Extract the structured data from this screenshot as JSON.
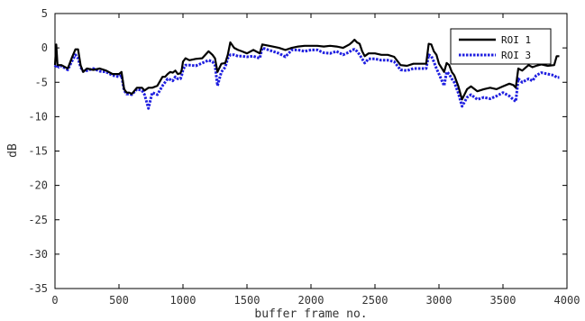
{
  "chart_data": {
    "type": "line",
    "title": "",
    "xlabel": "buffer frame no.",
    "ylabel": "dB",
    "xlim": [
      0,
      4000
    ],
    "ylim": [
      -35,
      5
    ],
    "xticks": [
      "0",
      "500",
      "1000",
      "1500",
      "2000",
      "2500",
      "3000",
      "3500",
      "4000"
    ],
    "yticks": [
      "5",
      "0",
      "-5",
      "-10",
      "-15",
      "-20",
      "-25",
      "-30",
      "-35"
    ],
    "grid": false,
    "legend_position": "top-right",
    "series": [
      {
        "name": "ROI 1",
        "color": "#000000",
        "style": "solid",
        "x": [
          0,
          10,
          20,
          50,
          100,
          130,
          160,
          180,
          200,
          220,
          250,
          300,
          350,
          400,
          450,
          500,
          520,
          540,
          560,
          580,
          600,
          640,
          680,
          700,
          730,
          760,
          800,
          840,
          860,
          880,
          900,
          920,
          940,
          960,
          980,
          990,
          1000,
          1020,
          1050,
          1100,
          1150,
          1200,
          1230,
          1250,
          1270,
          1300,
          1330,
          1350,
          1370,
          1400,
          1430,
          1460,
          1500,
          1550,
          1600,
          1620,
          1700,
          1750,
          1800,
          1850,
          1900,
          1950,
          2000,
          2050,
          2100,
          2150,
          2200,
          2250,
          2300,
          2320,
          2340,
          2360,
          2380,
          2400,
          2420,
          2450,
          2500,
          2550,
          2600,
          2650,
          2700,
          2750,
          2800,
          2850,
          2900,
          2920,
          2940,
          2960,
          2980,
          3000,
          3040,
          3060,
          3080,
          3100,
          3120,
          3150,
          3180,
          3220,
          3250,
          3300,
          3350,
          3400,
          3450,
          3500,
          3550,
          3580,
          3600,
          3620,
          3650,
          3700,
          3730,
          3760,
          3800,
          3850,
          3900,
          3920,
          3940
        ],
        "values": [
          -2.5,
          0.5,
          -2.5,
          -2.5,
          -3,
          -1.5,
          -0.2,
          -0.2,
          -2.5,
          -3.5,
          -3,
          -3.2,
          -3,
          -3.3,
          -3.8,
          -3.8,
          -3.5,
          -6,
          -6.5,
          -6.5,
          -6.7,
          -5.8,
          -5.8,
          -6.2,
          -5.8,
          -5.8,
          -5.5,
          -4.2,
          -4.2,
          -3.8,
          -3.5,
          -3.6,
          -3.3,
          -3.8,
          -3.7,
          -3.2,
          -2,
          -1.5,
          -1.8,
          -1.6,
          -1.5,
          -0.5,
          -1,
          -1.5,
          -3.5,
          -2.3,
          -2.2,
          -1,
          0.8,
          0,
          -0.3,
          -0.5,
          -0.8,
          -0.3,
          -0.8,
          0.5,
          0.2,
          0,
          -0.3,
          0,
          0.2,
          0.3,
          0.3,
          0.3,
          0.2,
          0.3,
          0.2,
          0,
          0.5,
          0.8,
          1.2,
          0.8,
          0.6,
          -0.5,
          -1.2,
          -0.8,
          -0.8,
          -1,
          -1,
          -1.3,
          -2.5,
          -2.6,
          -2.3,
          -2.3,
          -2.3,
          0.6,
          0.5,
          -0.5,
          -1,
          -2.3,
          -3.5,
          -2.2,
          -2.5,
          -3.5,
          -4,
          -5.5,
          -7.5,
          -6,
          -5.6,
          -6.3,
          -6,
          -5.8,
          -6,
          -5.6,
          -5.2,
          -5.4,
          -5.8,
          -3,
          -3.3,
          -2.5,
          -2.8,
          -2.6,
          -2.4,
          -2.6,
          -2.5,
          -1.2,
          -1.2
        ]
      },
      {
        "name": "ROI 3",
        "color": "#1f1fe0",
        "style": "dotted",
        "x": [
          0,
          10,
          30,
          50,
          100,
          130,
          160,
          180,
          200,
          220,
          250,
          300,
          350,
          400,
          450,
          500,
          520,
          540,
          560,
          580,
          600,
          640,
          680,
          700,
          730,
          760,
          800,
          840,
          860,
          880,
          900,
          920,
          940,
          960,
          980,
          990,
          1000,
          1020,
          1050,
          1100,
          1150,
          1200,
          1230,
          1250,
          1270,
          1300,
          1330,
          1350,
          1370,
          1400,
          1430,
          1460,
          1500,
          1550,
          1600,
          1620,
          1700,
          1750,
          1800,
          1850,
          1900,
          1950,
          2000,
          2050,
          2100,
          2150,
          2200,
          2250,
          2300,
          2320,
          2340,
          2360,
          2380,
          2400,
          2420,
          2450,
          2500,
          2550,
          2600,
          2650,
          2700,
          2750,
          2800,
          2850,
          2900,
          2920,
          2940,
          2960,
          2980,
          3000,
          3040,
          3060,
          3080,
          3100,
          3120,
          3150,
          3180,
          3220,
          3250,
          3300,
          3350,
          3400,
          3450,
          3500,
          3550,
          3580,
          3600,
          3620,
          3650,
          3700,
          3730,
          3760,
          3800,
          3850,
          3900,
          3920,
          3940
        ],
        "values": [
          -2.8,
          -2.5,
          -2.8,
          -2.6,
          -3.2,
          -2,
          -1,
          -1.5,
          -2.8,
          -3.4,
          -3.3,
          -3,
          -3.4,
          -3.5,
          -4,
          -4.2,
          -4,
          -6.2,
          -6.7,
          -6.7,
          -6.8,
          -6,
          -6.2,
          -6.8,
          -8.8,
          -6.5,
          -6.8,
          -5.5,
          -5,
          -4.5,
          -4.6,
          -4.8,
          -4.2,
          -4.5,
          -4.5,
          -4,
          -3.2,
          -2.5,
          -2.5,
          -2.6,
          -2.2,
          -1.8,
          -2,
          -2.5,
          -5.5,
          -3.5,
          -2.8,
          -1.5,
          -1,
          -1,
          -1.2,
          -1.2,
          -1.3,
          -1.2,
          -1.5,
          0,
          -0.5,
          -0.8,
          -1.3,
          -0.3,
          -0.3,
          -0.5,
          -0.3,
          -0.3,
          -0.7,
          -0.8,
          -0.5,
          -1,
          -0.6,
          -0.3,
          -0.2,
          -0.5,
          -1,
          -1.6,
          -2.2,
          -1.6,
          -1.6,
          -1.8,
          -1.8,
          -2,
          -3.2,
          -3.3,
          -3,
          -3,
          -3,
          -1,
          -1.2,
          -2,
          -3,
          -3.8,
          -5.5,
          -3.5,
          -3.8,
          -4.5,
          -5,
          -6.5,
          -8.5,
          -7.2,
          -6.8,
          -7.5,
          -7.2,
          -7.4,
          -7,
          -6.5,
          -7,
          -7.5,
          -7.8,
          -4.5,
          -5,
          -4.5,
          -4.8,
          -4,
          -3.6,
          -3.8,
          -4,
          -4.3,
          -4.3
        ]
      }
    ]
  }
}
